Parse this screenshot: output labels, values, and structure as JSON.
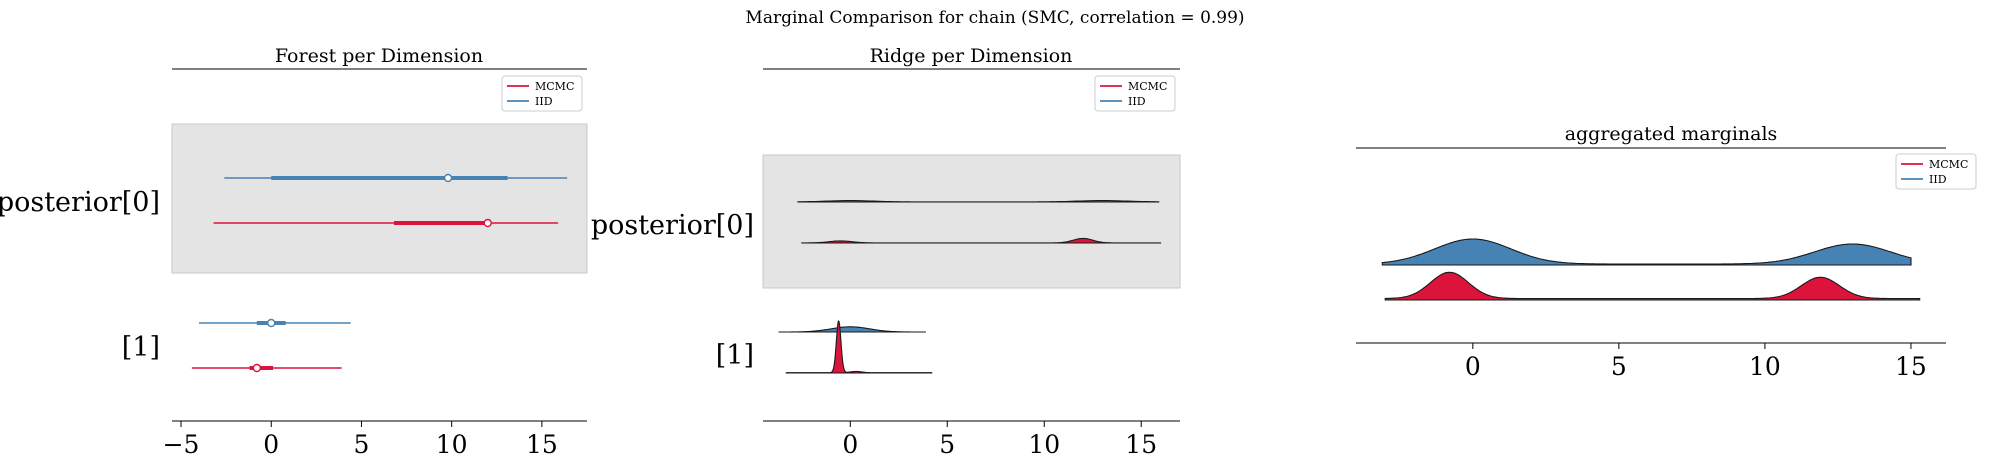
{
  "suptitle": "Marginal Comparison for chain (SMC, correlation = 0.99)",
  "colors": {
    "mcmc": "#dc143c",
    "iid": "#4682b4",
    "band": "#e4e4e4",
    "band_edge": "#c8c8c8"
  },
  "legend": [
    "MCMC",
    "IID"
  ],
  "chart_data": [
    {
      "type": "forest",
      "title": "Forest per Dimension",
      "xlim": [
        -5.5,
        17.5
      ],
      "xticks": [
        -5,
        0,
        5,
        10,
        15
      ],
      "ylabels": [
        "posterior[0]",
        "[1]"
      ],
      "legend_placement": "top-right",
      "series": [
        {
          "name": "IID",
          "dim": 0,
          "hdi": [
            -2.6,
            16.4
          ],
          "iqr": [
            0,
            13.1
          ],
          "median": 9.8
        },
        {
          "name": "MCMC",
          "dim": 0,
          "hdi": [
            -3.2,
            15.9
          ],
          "iqr": [
            6.8,
            12.1
          ],
          "median": 12.0
        },
        {
          "name": "IID",
          "dim": 1,
          "hdi": [
            -4.0,
            4.4
          ],
          "iqr": [
            -0.8,
            0.8
          ],
          "median": 0.0
        },
        {
          "name": "MCMC",
          "dim": 1,
          "hdi": [
            -4.4,
            3.9
          ],
          "iqr": [
            -1.2,
            0.1
          ],
          "median": -0.8
        }
      ]
    },
    {
      "type": "ridge",
      "title": "Ridge per Dimension",
      "xlim": [
        -4.5,
        17
      ],
      "xticks": [
        0,
        5,
        10,
        15
      ],
      "ylabels": [
        "posterior[0]",
        "[1]"
      ],
      "legend_placement": "top-right",
      "series": [
        {
          "name": "IID",
          "dim": 0,
          "range": [
            -2.7,
            15.9
          ],
          "peaks": [
            [
              0,
              1.2,
              0.13
            ],
            [
              13,
              1.3,
              0.13
            ]
          ],
          "base": 0.01
        },
        {
          "name": "MCMC",
          "dim": 0,
          "range": [
            -2.5,
            16
          ],
          "peaks": [
            [
              -0.5,
              0.6,
              0.2
            ],
            [
              12,
              0.5,
              0.45
            ]
          ],
          "base": 0.01
        },
        {
          "name": "IID",
          "dim": 1,
          "range": [
            -3.7,
            3.9
          ],
          "peaks": [
            [
              0,
              1.0,
              0.4
            ]
          ],
          "base": 0.0
        },
        {
          "name": "MCMC",
          "dim": 1,
          "range": [
            -3.3,
            4.2
          ],
          "peaks": [
            [
              -0.6,
              0.12,
              4.0
            ],
            [
              0.3,
              0.3,
              0.1
            ]
          ],
          "base": 0.02
        }
      ]
    },
    {
      "type": "ridge",
      "title": "aggregated marginals",
      "xlim": [
        -4,
        16.2
      ],
      "xticks": [
        0,
        5,
        10,
        15
      ],
      "ylabels": [],
      "legend_placement": "top-right",
      "series": [
        {
          "name": "IID",
          "dim": 0,
          "range": [
            -3.1,
            15
          ],
          "peaks": [
            [
              0,
              1.3,
              1.0
            ],
            [
              13,
              1.3,
              0.8
            ]
          ],
          "base": 0.04
        },
        {
          "name": "MCMC",
          "dim": 0,
          "range": [
            -3.0,
            15.3
          ],
          "peaks": [
            [
              -0.8,
              0.65,
              1.05
            ],
            [
              11.9,
              0.65,
              0.85
            ]
          ],
          "base": 0.06
        }
      ]
    }
  ]
}
